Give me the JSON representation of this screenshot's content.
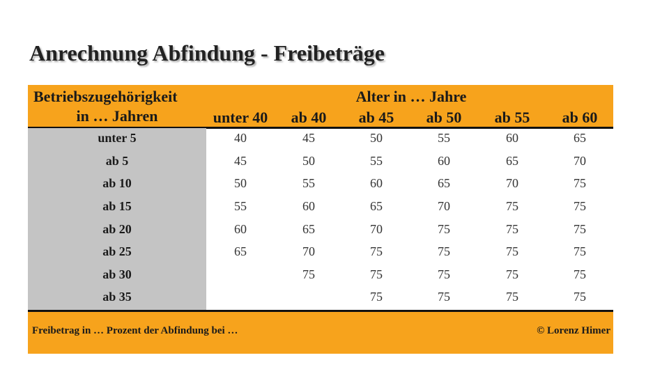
{
  "title": "Anrechnung Abfindung - Freibeträge",
  "table": {
    "header": {
      "row_label": [
        "Betriebszugehörigkeit",
        "in … Jahren"
      ],
      "group": "Alter in … Jahre",
      "columns": [
        "unter 40",
        "ab 40",
        "ab 45",
        "ab 50",
        "ab 55",
        "ab 60"
      ]
    },
    "rows": [
      {
        "label": "unter 5",
        "values": [
          40,
          45,
          50,
          55,
          60,
          65
        ]
      },
      {
        "label": "ab 5",
        "values": [
          45,
          50,
          55,
          60,
          65,
          70
        ]
      },
      {
        "label": "ab 10",
        "values": [
          50,
          55,
          60,
          65,
          70,
          75
        ]
      },
      {
        "label": "ab 15",
        "values": [
          55,
          60,
          65,
          70,
          75,
          75
        ]
      },
      {
        "label": "ab 20",
        "values": [
          60,
          65,
          70,
          75,
          75,
          75
        ]
      },
      {
        "label": "ab 25",
        "values": [
          65,
          70,
          75,
          75,
          75,
          75
        ]
      },
      {
        "label": "ab 30",
        "values": [
          null,
          75,
          75,
          75,
          75,
          75
        ]
      },
      {
        "label": "ab 35",
        "values": [
          null,
          null,
          75,
          75,
          75,
          75
        ]
      }
    ],
    "footer": {
      "note": "Freibetrag in … Prozent der Abfindung bei …",
      "credit": "© Lorenz Himer"
    }
  }
}
